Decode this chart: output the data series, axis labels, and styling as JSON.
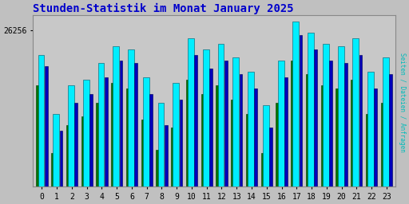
{
  "title": "Stunden-Statistik im Monat January 2025",
  "ylabel": "Seiten / Dateien / Anfragen",
  "hours": [
    0,
    1,
    2,
    3,
    4,
    5,
    6,
    7,
    8,
    9,
    10,
    11,
    12,
    13,
    14,
    15,
    16,
    17,
    18,
    19,
    20,
    21,
    22,
    23
  ],
  "seiten": [
    26170,
    25960,
    26060,
    26080,
    26140,
    26200,
    26190,
    26090,
    26000,
    26070,
    26230,
    26190,
    26210,
    26160,
    26110,
    25990,
    26150,
    26290,
    26250,
    26210,
    26200,
    26230,
    26110,
    26160
  ],
  "dateien": [
    26130,
    25900,
    26000,
    26030,
    26090,
    26150,
    26140,
    26030,
    25920,
    26010,
    26170,
    26120,
    26150,
    26100,
    26050,
    25910,
    26090,
    26240,
    26190,
    26150,
    26140,
    26170,
    26050,
    26100
  ],
  "anfragen": [
    26060,
    25820,
    25920,
    25950,
    26000,
    26070,
    26050,
    25940,
    25830,
    25910,
    26080,
    26030,
    26060,
    26010,
    25960,
    25820,
    26000,
    26150,
    26100,
    26060,
    26050,
    26080,
    25960,
    26000
  ],
  "ylim_min": 25700,
  "ylim_max": 26310,
  "ytick": 26256,
  "color_seiten": "#00EEFF",
  "color_dateien": "#0000BB",
  "color_anfragen": "#007700",
  "edge_color_seiten": "#005566",
  "edge_color_dateien": "#000055",
  "edge_color_anfragen": "#003300",
  "bg_color": "#C0C0C0",
  "plot_bg": "#C8C8C8",
  "title_color": "#0000CC",
  "ylabel_color": "#00BBBB",
  "tick_label_size": 7,
  "title_fontsize": 10
}
